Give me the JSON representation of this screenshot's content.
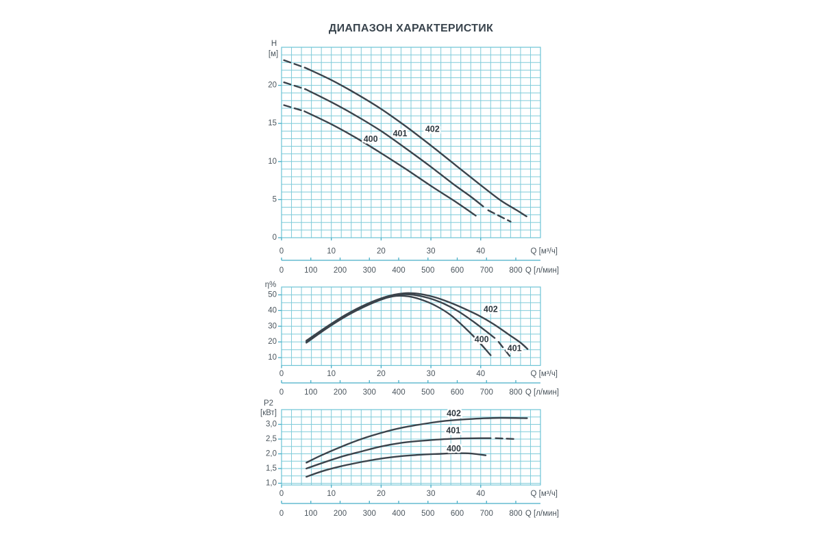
{
  "title": "ДИАПАЗОН ХАРАКТЕРИСТИК",
  "colors": {
    "background": "#ffffff",
    "grid": "#7fcbd9",
    "frame": "#6cc3d4",
    "axis": "#46aec6",
    "tick_text": "#4b555d",
    "title_text": "#39444d",
    "curve": "#3b434b",
    "curve_label": "#2f3940"
  },
  "chart_data": [
    {
      "type": "line",
      "name": "head",
      "ylabel_lines": [
        "H",
        "[м]"
      ],
      "xlabel": "Q [м³/ч]",
      "x2label": "Q [л/мин]",
      "xlim": [
        0,
        52
      ],
      "ylim": [
        0,
        25
      ],
      "grid_step_x": 2,
      "grid_step_y": 1,
      "xticks": [
        0,
        10,
        20,
        30,
        40
      ],
      "yticks": [
        0,
        5,
        10,
        15,
        20
      ],
      "ytick_labels": [
        "0",
        "5",
        "10",
        "15",
        "20"
      ],
      "x2lim": [
        0,
        800
      ],
      "x2ticks": [
        0,
        100,
        200,
        300,
        400,
        500,
        600,
        700,
        800
      ],
      "series": [
        {
          "name": "400",
          "label_at": [
            17.9,
            12.9
          ],
          "dash_pre": [
            [
              0.5,
              17.4
            ],
            [
              4.6,
              16.6
            ]
          ],
          "solid": [
            [
              4.6,
              16.6
            ],
            [
              10,
              14.9
            ],
            [
              15,
              13.1
            ],
            [
              20,
              11.1
            ],
            [
              25,
              9.0
            ],
            [
              30,
              6.8
            ],
            [
              35,
              4.7
            ],
            [
              39,
              2.9
            ]
          ]
        },
        {
          "name": "401",
          "label_at": [
            23.8,
            13.6
          ],
          "dash_pre": [
            [
              0.5,
              20.4
            ],
            [
              4.8,
              19.5
            ]
          ],
          "solid": [
            [
              4.8,
              19.5
            ],
            [
              10,
              17.8
            ],
            [
              15,
              16.0
            ],
            [
              20,
              14.0
            ],
            [
              25,
              11.7
            ],
            [
              30,
              9.3
            ],
            [
              35,
              6.8
            ],
            [
              38,
              5.4
            ],
            [
              40.5,
              4.1
            ]
          ],
          "dash_post": [
            [
              41.5,
              3.6
            ],
            [
              46,
              2.1
            ]
          ]
        },
        {
          "name": "402",
          "label_at": [
            30.3,
            14.2
          ],
          "dash_pre": [
            [
              0.5,
              23.3
            ],
            [
              4.8,
              22.3
            ]
          ],
          "solid": [
            [
              4.8,
              22.3
            ],
            [
              10,
              20.7
            ],
            [
              15,
              18.9
            ],
            [
              20,
              16.9
            ],
            [
              25,
              14.6
            ],
            [
              30,
              12.1
            ],
            [
              35,
              9.5
            ],
            [
              40,
              6.9
            ],
            [
              44,
              4.9
            ],
            [
              47,
              3.7
            ],
            [
              49.2,
              2.8
            ]
          ]
        }
      ]
    },
    {
      "type": "line",
      "name": "efficiency",
      "ylabel_lines": [
        "η%"
      ],
      "xlabel": "Q [м³/ч]",
      "x2label": "Q [л/мин]",
      "xlim": [
        0,
        52
      ],
      "ylim": [
        5,
        55
      ],
      "grid_step_x": 2,
      "grid_step_y": 5,
      "xticks": [
        0,
        10,
        20,
        30,
        40
      ],
      "yticks": [
        10,
        20,
        30,
        40,
        50
      ],
      "ytick_labels": [
        "10",
        "20",
        "30",
        "40",
        "50"
      ],
      "x2lim": [
        0,
        800
      ],
      "x2ticks": [
        0,
        100,
        200,
        300,
        400,
        500,
        600,
        700,
        800
      ],
      "series": [
        {
          "name": "400",
          "label_at": [
            40.2,
            21.2
          ],
          "solid": [
            [
              5,
              19.5
            ],
            [
              9,
              28.5
            ],
            [
              13,
              36.5
            ],
            [
              17,
              43
            ],
            [
              20.5,
              47.5
            ],
            [
              23,
              49.3
            ],
            [
              25.5,
              49
            ],
            [
              28,
              47
            ],
            [
              31,
              43
            ],
            [
              34,
              37
            ],
            [
              37,
              28.5
            ],
            [
              39.5,
              20.5
            ],
            [
              42,
              11.5
            ]
          ]
        },
        {
          "name": "401",
          "label_at": [
            46.8,
            15.6
          ],
          "solid": [
            [
              5,
              20.2
            ],
            [
              9,
              29
            ],
            [
              13,
              37
            ],
            [
              17,
              43.5
            ],
            [
              21,
              48.3
            ],
            [
              24,
              50.3
            ],
            [
              26.5,
              50
            ],
            [
              29.5,
              48
            ],
            [
              32.5,
              44.5
            ],
            [
              35.5,
              39.5
            ],
            [
              38.5,
              33
            ],
            [
              41,
              27
            ],
            [
              42.8,
              22.5
            ]
          ],
          "dash_post": [
            [
              43.6,
              20
            ],
            [
              46.2,
              9.5
            ]
          ]
        },
        {
          "name": "402",
          "label_at": [
            42.0,
            40.6
          ],
          "solid": [
            [
              5,
              20.8
            ],
            [
              9,
              29.5
            ],
            [
              13,
              37.5
            ],
            [
              17,
              44
            ],
            [
              21,
              48.8
            ],
            [
              24.5,
              51
            ],
            [
              27.5,
              50.7
            ],
            [
              30.5,
              48.7
            ],
            [
              33.5,
              45.5
            ],
            [
              36.5,
              41.5
            ],
            [
              39.5,
              37
            ],
            [
              42.5,
              31.5
            ],
            [
              45.5,
              25
            ],
            [
              48,
              19.5
            ],
            [
              49.4,
              15.5
            ]
          ]
        }
      ]
    },
    {
      "type": "line",
      "name": "power",
      "ylabel_lines": [
        "P2",
        "[кВт]"
      ],
      "xlabel": "Q [м³/ч]",
      "x2label": "Q [л/мин]",
      "xlim": [
        0,
        52
      ],
      "ylim": [
        0.942,
        3.5
      ],
      "grid_step_x": 2,
      "grid_step_y": 0.25,
      "xticks": [
        0,
        10,
        20,
        30,
        40
      ],
      "yticks": [
        1.0,
        1.5,
        2.0,
        2.5,
        3.0
      ],
      "ytick_labels": [
        "1,0",
        "1,5",
        "2,0",
        "2,5",
        "3,0"
      ],
      "x2lim": [
        0,
        800
      ],
      "x2ticks": [
        0,
        100,
        200,
        300,
        400,
        500,
        600,
        700,
        800
      ],
      "series": [
        {
          "name": "400",
          "label_at": [
            34.6,
            2.16
          ],
          "solid": [
            [
              5,
              1.22
            ],
            [
              8,
              1.4
            ],
            [
              12,
              1.58
            ],
            [
              16,
              1.72
            ],
            [
              20,
              1.84
            ],
            [
              24,
              1.92
            ],
            [
              28,
              1.97
            ],
            [
              32,
              2.0
            ],
            [
              35.5,
              2.02
            ],
            [
              38,
              2.01
            ],
            [
              41,
              1.95
            ]
          ]
        },
        {
          "name": "401",
          "label_at": [
            34.5,
            2.77
          ],
          "solid": [
            [
              5,
              1.5
            ],
            [
              8,
              1.68
            ],
            [
              12,
              1.9
            ],
            [
              16,
              2.08
            ],
            [
              20,
              2.25
            ],
            [
              24,
              2.37
            ],
            [
              28,
              2.44
            ],
            [
              32,
              2.49
            ],
            [
              36,
              2.52
            ],
            [
              40,
              2.53
            ],
            [
              42,
              2.53
            ]
          ],
          "dash_post": [
            [
              43,
              2.53
            ],
            [
              47.2,
              2.5
            ]
          ]
        },
        {
          "name": "402",
          "label_at": [
            34.6,
            3.36
          ],
          "solid": [
            [
              5,
              1.7
            ],
            [
              8,
              1.95
            ],
            [
              12,
              2.24
            ],
            [
              16,
              2.5
            ],
            [
              20,
              2.71
            ],
            [
              24,
              2.88
            ],
            [
              28,
              3.0
            ],
            [
              32,
              3.1
            ],
            [
              36,
              3.16
            ],
            [
              40,
              3.2
            ],
            [
              44,
              3.22
            ],
            [
              49.3,
              3.21
            ]
          ]
        }
      ]
    }
  ]
}
